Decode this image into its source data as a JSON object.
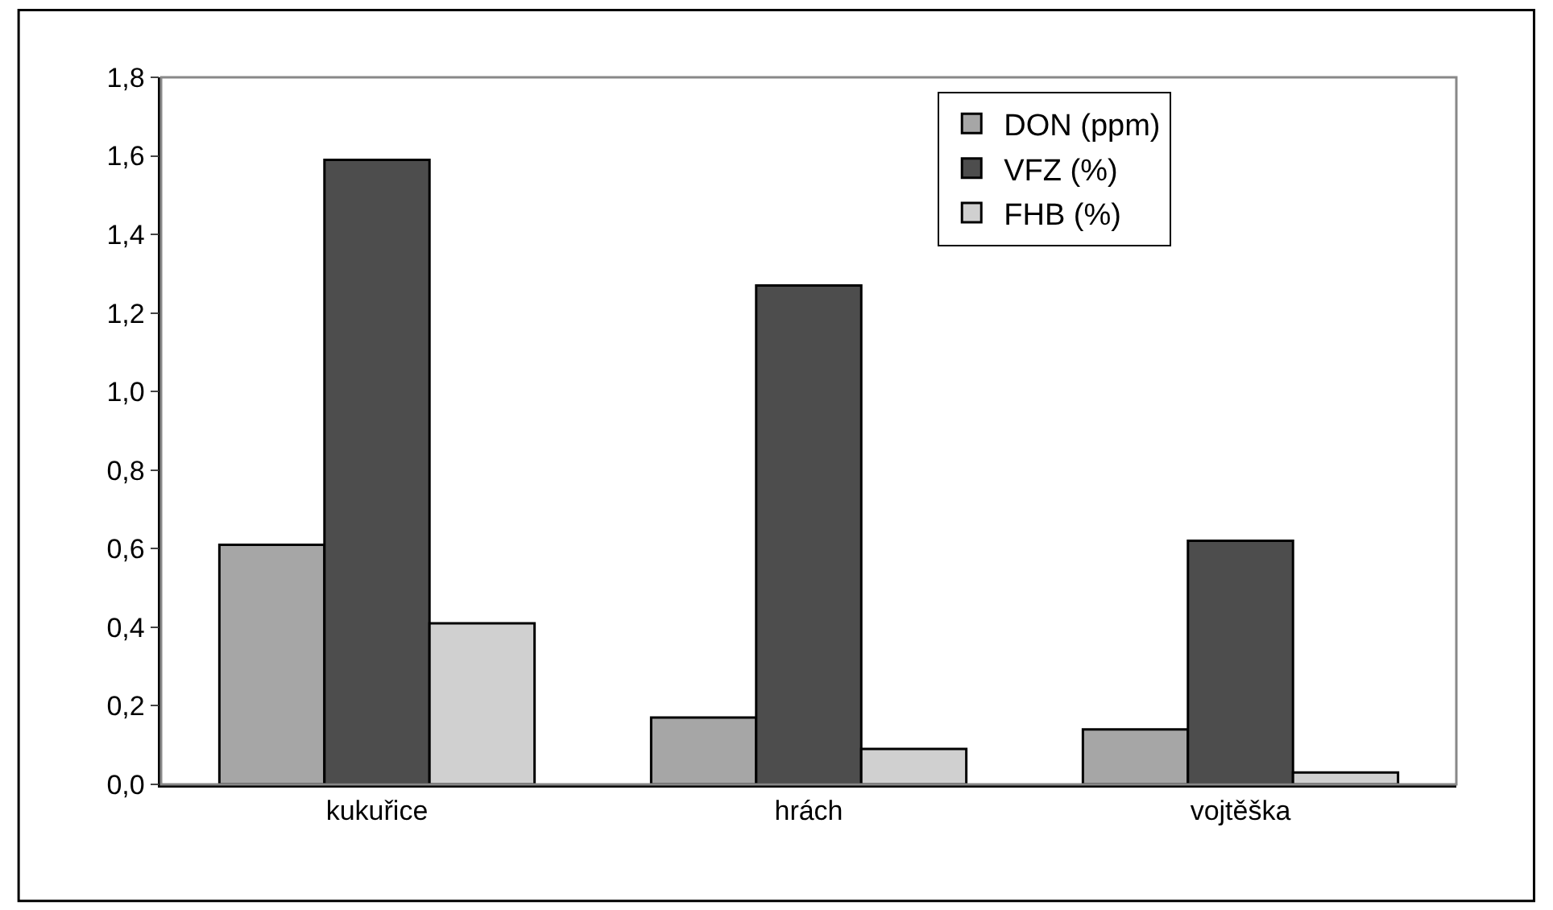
{
  "chart_data": {
    "type": "bar",
    "categories": [
      "kukuřice",
      "hrách",
      "vojtěška"
    ],
    "series": [
      {
        "name": "DON (ppm)",
        "color": "#a6a6a6",
        "values": [
          0.61,
          0.17,
          0.14
        ]
      },
      {
        "name": "VFZ (%)",
        "color": "#4d4d4d",
        "values": [
          1.59,
          1.27,
          0.62
        ]
      },
      {
        "name": "FHB (%)",
        "color": "#d0d0d0",
        "values": [
          0.41,
          0.09,
          0.03
        ]
      }
    ],
    "ylim": [
      0,
      1.8
    ],
    "yticks": [
      {
        "value": 0,
        "label": "0,0"
      },
      {
        "value": 0.2,
        "label": "0,2"
      },
      {
        "value": 0.4,
        "label": "0,4"
      },
      {
        "value": 0.6,
        "label": "0,6"
      },
      {
        "value": 0.8,
        "label": "0,8"
      },
      {
        "value": 1.0,
        "label": "1,0"
      },
      {
        "value": 1.2,
        "label": "1,2"
      },
      {
        "value": 1.4,
        "label": "1,4"
      },
      {
        "value": 1.6,
        "label": "1,6"
      },
      {
        "value": 1.8,
        "label": "1,8"
      }
    ],
    "grid": false,
    "legend": "top right"
  }
}
